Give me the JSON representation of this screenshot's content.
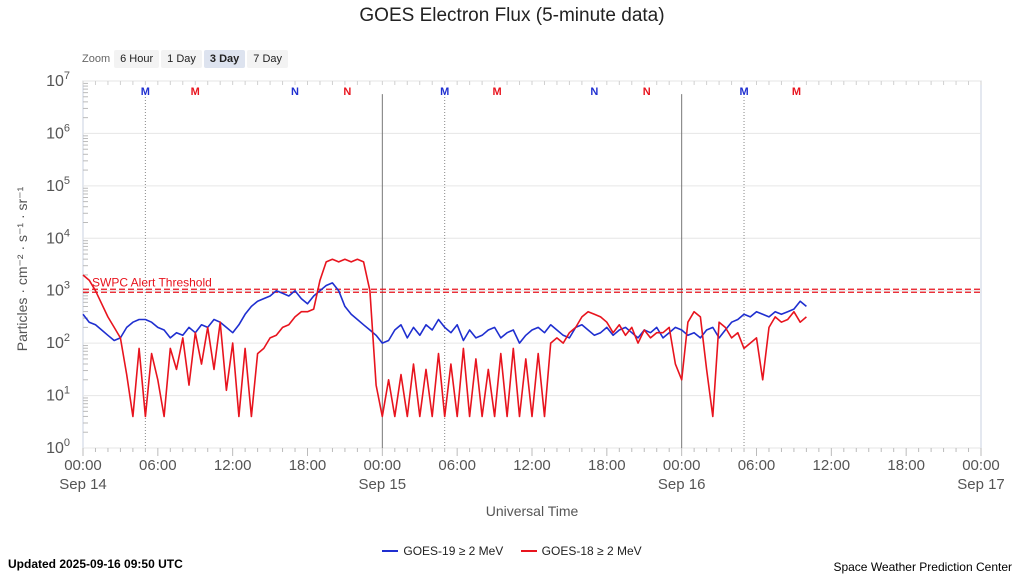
{
  "title": "GOES Electron Flux (5-minute data)",
  "zoom": {
    "label": "Zoom",
    "options": [
      "6 Hour",
      "1 Day",
      "3 Day",
      "7 Day"
    ],
    "selected": "3 Day"
  },
  "footer": {
    "updated": "Updated 2025-09-16 09:50 UTC",
    "credit": "Space Weather Prediction Center"
  },
  "colors": {
    "goes19": "#1f2fd0",
    "goes18": "#e8141e",
    "alert": "#e8141e"
  },
  "chart_data": {
    "type": "line",
    "title": "GOES Electron Flux (5-minute data)",
    "xlabel": "Universal Time",
    "ylabel": "Particles · cm⁻² · s⁻¹ · sr⁻¹",
    "y_scale": "log",
    "ylim_exponent": [
      0,
      7
    ],
    "y_ticks": [
      {
        "base": "10",
        "exp": "0"
      },
      {
        "base": "10",
        "exp": "1"
      },
      {
        "base": "10",
        "exp": "2"
      },
      {
        "base": "10",
        "exp": "3"
      },
      {
        "base": "10",
        "exp": "4"
      },
      {
        "base": "10",
        "exp": "5"
      },
      {
        "base": "10",
        "exp": "6"
      },
      {
        "base": "10",
        "exp": "7"
      }
    ],
    "xlim_hours": [
      0,
      72
    ],
    "x_ticks": [
      {
        "hour": 0,
        "time": "00:00",
        "date": "Sep 14"
      },
      {
        "hour": 6,
        "time": "06:00",
        "date": ""
      },
      {
        "hour": 12,
        "time": "12:00",
        "date": ""
      },
      {
        "hour": 18,
        "time": "18:00",
        "date": ""
      },
      {
        "hour": 24,
        "time": "00:00",
        "date": "Sep 15"
      },
      {
        "hour": 30,
        "time": "06:00",
        "date": ""
      },
      {
        "hour": 36,
        "time": "12:00",
        "date": ""
      },
      {
        "hour": 42,
        "time": "18:00",
        "date": ""
      },
      {
        "hour": 48,
        "time": "00:00",
        "date": "Sep 16"
      },
      {
        "hour": 54,
        "time": "06:00",
        "date": ""
      },
      {
        "hour": 60,
        "time": "12:00",
        "date": ""
      },
      {
        "hour": 66,
        "time": "18:00",
        "date": ""
      },
      {
        "hour": 72,
        "time": "00:00",
        "date": "Sep 17"
      }
    ],
    "day_boundaries_hours": [
      24,
      48
    ],
    "alert_threshold": {
      "label": "SWPC Alert Threshold",
      "log10_value": 3.0
    },
    "markers": [
      {
        "hour": 5.0,
        "label": "M",
        "color": "#1f2fd0",
        "vline": true
      },
      {
        "hour": 9.0,
        "label": "M",
        "color": "#e8141e",
        "vline": false
      },
      {
        "hour": 17.0,
        "label": "N",
        "color": "#1f2fd0",
        "vline": false
      },
      {
        "hour": 21.2,
        "label": "N",
        "color": "#e8141e",
        "vline": false
      },
      {
        "hour": 29.0,
        "label": "M",
        "color": "#1f2fd0",
        "vline": true
      },
      {
        "hour": 33.2,
        "label": "M",
        "color": "#e8141e",
        "vline": false
      },
      {
        "hour": 41.0,
        "label": "N",
        "color": "#1f2fd0",
        "vline": false
      },
      {
        "hour": 45.2,
        "label": "N",
        "color": "#e8141e",
        "vline": false
      },
      {
        "hour": 53.0,
        "label": "M",
        "color": "#1f2fd0",
        "vline": true
      },
      {
        "hour": 57.2,
        "label": "M",
        "color": "#e8141e",
        "vline": false
      }
    ],
    "series": [
      {
        "name": "GOES-19 ≥ 2 MeV",
        "color": "#1f2fd0",
        "x_hours": [
          0,
          0.5,
          1,
          1.5,
          2,
          2.5,
          3,
          3.5,
          4,
          4.5,
          5,
          5.5,
          6,
          6.5,
          7,
          7.5,
          8,
          8.5,
          9,
          9.5,
          10,
          10.5,
          11,
          11.5,
          12,
          12.5,
          13,
          13.5,
          14,
          14.5,
          15,
          15.5,
          16,
          16.5,
          17,
          17.5,
          18,
          18.5,
          19,
          19.5,
          20,
          20.5,
          21,
          21.5,
          22,
          22.5,
          23,
          23.5,
          24,
          24.5,
          25,
          25.5,
          26,
          26.5,
          27,
          27.5,
          28,
          28.5,
          29,
          29.5,
          30,
          30.5,
          31,
          31.5,
          32,
          32.5,
          33,
          33.5,
          34,
          34.5,
          35,
          35.5,
          36,
          36.5,
          37,
          37.5,
          38,
          38.5,
          39,
          39.5,
          40,
          40.5,
          41,
          41.5,
          42,
          42.5,
          43,
          43.5,
          44,
          44.5,
          45,
          45.5,
          46,
          46.5,
          47,
          47.5,
          48,
          48.5,
          49,
          49.5,
          50,
          50.5,
          51,
          51.5,
          52,
          52.5,
          53,
          53.5,
          54,
          54.5,
          55,
          55.5,
          56,
          56.5,
          57,
          57.5,
          58
        ],
        "log10_values": [
          2.55,
          2.4,
          2.35,
          2.25,
          2.15,
          2.05,
          2.1,
          2.3,
          2.4,
          2.45,
          2.45,
          2.4,
          2.3,
          2.25,
          2.1,
          2.2,
          2.15,
          2.3,
          2.2,
          2.35,
          2.3,
          2.45,
          2.4,
          2.3,
          2.2,
          2.35,
          2.55,
          2.7,
          2.8,
          2.85,
          2.9,
          3.0,
          2.95,
          2.9,
          3.0,
          2.85,
          2.75,
          2.9,
          3.0,
          3.1,
          3.15,
          3.0,
          2.7,
          2.55,
          2.45,
          2.35,
          2.25,
          2.15,
          2.0,
          2.05,
          2.25,
          2.35,
          2.1,
          2.3,
          2.15,
          2.35,
          2.25,
          2.45,
          2.3,
          2.2,
          2.35,
          2.05,
          2.25,
          2.1,
          2.15,
          2.25,
          2.3,
          2.1,
          2.2,
          2.25,
          2.0,
          2.15,
          2.25,
          2.3,
          2.2,
          2.35,
          2.25,
          2.15,
          2.1,
          2.3,
          2.35,
          2.25,
          2.15,
          2.2,
          2.3,
          2.15,
          2.25,
          2.3,
          2.2,
          2.1,
          2.25,
          2.2,
          2.3,
          2.1,
          2.2,
          2.3,
          2.25,
          2.15,
          2.2,
          2.1,
          2.25,
          2.3,
          2.1,
          2.25,
          2.4,
          2.45,
          2.55,
          2.5,
          2.6,
          2.55,
          2.5,
          2.6,
          2.55,
          2.6,
          2.65,
          2.8,
          2.7
        ]
      },
      {
        "name": "GOES-18 ≥ 2 MeV",
        "color": "#e8141e",
        "x_hours": [
          0,
          0.5,
          1,
          1.5,
          2,
          2.5,
          3,
          3.5,
          4,
          4.5,
          5,
          5.5,
          6,
          6.5,
          7,
          7.5,
          8,
          8.5,
          9,
          9.5,
          10,
          10.5,
          11,
          11.5,
          12,
          12.5,
          13,
          13.5,
          14,
          14.5,
          15,
          15.5,
          16,
          16.5,
          17,
          17.5,
          18,
          18.5,
          19,
          19.5,
          20,
          20.5,
          21,
          21.5,
          22,
          22.5,
          23,
          23.5,
          24,
          24.5,
          25,
          25.5,
          26,
          26.5,
          27,
          27.5,
          28,
          28.5,
          29,
          29.5,
          30,
          30.5,
          31,
          31.5,
          32,
          32.5,
          33,
          33.5,
          34,
          34.5,
          35,
          35.5,
          36,
          36.5,
          37,
          37.5,
          38,
          38.5,
          39,
          39.5,
          40,
          40.5,
          41,
          41.5,
          42,
          42.5,
          43,
          43.5,
          44,
          44.5,
          45,
          45.5,
          46,
          46.5,
          47,
          47.5,
          48,
          48.5,
          49,
          49.5,
          50,
          50.5,
          51,
          51.5,
          52,
          52.5,
          53,
          53.5,
          54,
          54.5,
          55,
          55.5,
          56,
          56.5,
          57,
          57.5,
          58
        ],
        "log10_values": [
          3.3,
          3.2,
          3.0,
          2.75,
          2.5,
          2.3,
          2.1,
          1.4,
          0.6,
          1.9,
          0.6,
          1.8,
          1.3,
          0.6,
          1.9,
          1.5,
          2.1,
          1.2,
          2.2,
          1.6,
          2.3,
          1.5,
          2.4,
          1.1,
          2.0,
          0.6,
          1.9,
          0.6,
          1.8,
          1.9,
          2.1,
          2.15,
          2.3,
          2.35,
          2.5,
          2.6,
          2.6,
          2.65,
          3.2,
          3.55,
          3.6,
          3.55,
          3.6,
          3.55,
          3.6,
          3.55,
          3.0,
          1.2,
          0.6,
          1.3,
          0.6,
          1.4,
          0.6,
          1.6,
          0.6,
          1.5,
          0.6,
          1.8,
          0.6,
          1.6,
          0.6,
          1.9,
          0.6,
          1.7,
          0.6,
          1.5,
          0.6,
          1.8,
          0.6,
          1.9,
          0.6,
          1.7,
          0.6,
          1.8,
          0.6,
          2.0,
          2.1,
          2.0,
          2.2,
          2.3,
          2.5,
          2.6,
          2.55,
          2.5,
          2.4,
          2.2,
          2.35,
          2.15,
          2.3,
          2.0,
          2.25,
          2.1,
          2.2,
          2.2,
          2.3,
          1.6,
          1.3,
          2.4,
          2.6,
          2.5,
          1.5,
          0.6,
          2.4,
          2.3,
          2.1,
          2.2,
          1.9,
          2.0,
          2.1,
          1.3,
          2.3,
          2.5,
          2.4,
          2.45,
          2.6,
          2.4,
          2.5
        ]
      }
    ]
  }
}
